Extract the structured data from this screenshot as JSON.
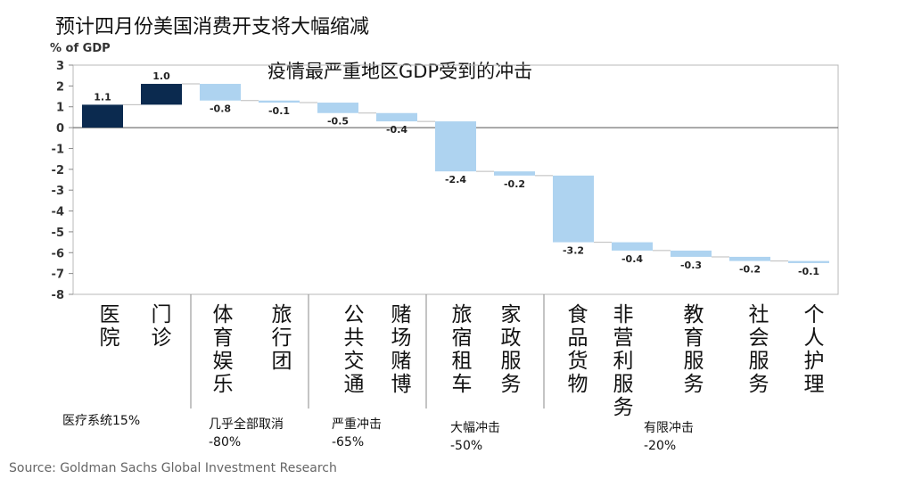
{
  "title": "预计四月份美国消费开支将大幅缩减",
  "chart_data": {
    "type": "bar",
    "subtype": "waterfall",
    "title": "疫情最严重地区GDP受到的冲击",
    "ylabel": "% of GDP",
    "ylim": [
      -8,
      3
    ],
    "yticks": [
      3,
      2,
      1,
      0,
      -1,
      -2,
      -3,
      -4,
      -5,
      -6,
      -7,
      -8
    ],
    "categories": [
      "医院",
      "门诊",
      "体育娱乐",
      "旅行团",
      "公共交通",
      "赌场赌博",
      "旅宿租车",
      "家政服务",
      "食品货物",
      "非营利服务",
      "教育服务",
      "社会服务",
      "个人护理"
    ],
    "values": [
      1.1,
      1.0,
      -0.8,
      -0.1,
      -0.5,
      -0.4,
      -2.4,
      -0.2,
      -3.2,
      -0.4,
      -0.3,
      -0.2,
      -0.1
    ],
    "data_labels": [
      "1.1",
      "1.0",
      "-0.8",
      "-0.1",
      "-0.5",
      "-0.4",
      "-2.4",
      "-0.2",
      "-3.2",
      "-0.4",
      "-0.3",
      "-0.2",
      "-0.1"
    ],
    "colors": {
      "positive": "#0b2a4f",
      "negative": "#aed3f0"
    },
    "groups": [
      {
        "line1": "医疗系统15%",
        "line2": ""
      },
      {
        "line1": "几乎全部取消",
        "line2": "-80%"
      },
      {
        "line1": "严重冲击",
        "line2": "-65%"
      },
      {
        "line1": "大幅冲击",
        "line2": "-50%"
      },
      {
        "line1": "有限冲击",
        "line2": "-20%"
      }
    ]
  },
  "source": "Source: Goldman Sachs Global Investment Research"
}
